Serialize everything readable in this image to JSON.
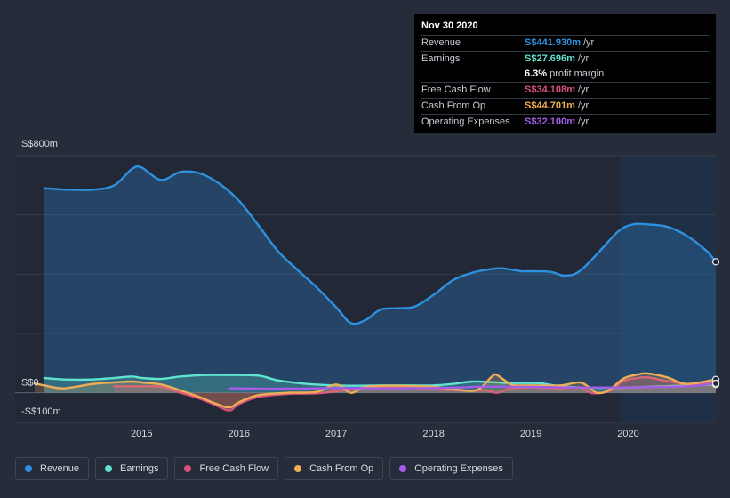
{
  "tooltip": {
    "date": "Nov 30 2020",
    "rows": [
      {
        "label": "Revenue",
        "value": "S$441.930m",
        "unit": "/yr",
        "color": "#2d91e0"
      },
      {
        "label": "Earnings",
        "value": "S$27.696m",
        "unit": "/yr",
        "color": "#5ee3cf"
      },
      {
        "label": "",
        "value": "6.3%",
        "unit": "profit margin",
        "color": "#ffffff"
      },
      {
        "label": "Free Cash Flow",
        "value": "S$34.108m",
        "unit": "/yr",
        "color": "#d9527e"
      },
      {
        "label": "Cash From Op",
        "value": "S$44.701m",
        "unit": "/yr",
        "color": "#efae55"
      },
      {
        "label": "Operating Expenses",
        "value": "S$32.100m",
        "unit": "/yr",
        "color": "#a45de8"
      }
    ]
  },
  "legend": [
    {
      "label": "Revenue",
      "color": "#2d91e0"
    },
    {
      "label": "Earnings",
      "color": "#5ee3cf"
    },
    {
      "label": "Free Cash Flow",
      "color": "#d9527e"
    },
    {
      "label": "Cash From Op",
      "color": "#efae55"
    },
    {
      "label": "Operating Expenses",
      "color": "#a45de8"
    }
  ],
  "chart_data": {
    "type": "area",
    "ylim": [
      -100,
      800
    ],
    "y_tick_labels": [
      {
        "value": 800,
        "label": "S$800m"
      },
      {
        "value": 0,
        "label": "S$0"
      },
      {
        "value": -100,
        "label": "-S$100m"
      }
    ],
    "x_ticks": [
      {
        "value": 2015,
        "label": "2015"
      },
      {
        "value": 2016,
        "label": "2016"
      },
      {
        "value": 2017,
        "label": "2017"
      },
      {
        "value": 2018,
        "label": "2018"
      },
      {
        "value": 2019,
        "label": "2019"
      },
      {
        "value": 2020,
        "label": "2020"
      }
    ],
    "xlim": [
      2013.7,
      2020.9
    ],
    "highlight_from": 2019.92,
    "series": [
      {
        "name": "Revenue",
        "color": "#2d91e0",
        "fill": true,
        "x": [
          2014.0,
          2014.25,
          2014.5,
          2014.72,
          2014.9,
          2015.0,
          2015.2,
          2015.4,
          2015.6,
          2015.8,
          2016.0,
          2016.2,
          2016.4,
          2016.6,
          2016.8,
          2017.0,
          2017.15,
          2017.3,
          2017.45,
          2017.6,
          2017.8,
          2018.0,
          2018.2,
          2018.4,
          2018.55,
          2018.7,
          2018.9,
          2019.0,
          2019.2,
          2019.35,
          2019.5,
          2019.7,
          2019.9,
          2020.05,
          2020.2,
          2020.4,
          2020.6,
          2020.8,
          2020.9
        ],
        "values": [
          690,
          685,
          685,
          700,
          755,
          760,
          718,
          745,
          740,
          705,
          648,
          565,
          478,
          415,
          355,
          288,
          235,
          245,
          280,
          285,
          290,
          330,
          380,
          405,
          415,
          420,
          410,
          410,
          408,
          395,
          410,
          475,
          545,
          568,
          568,
          560,
          530,
          480,
          442
        ]
      },
      {
        "name": "Earnings",
        "color": "#5ee3cf",
        "fill": true,
        "x": [
          2014.0,
          2014.2,
          2014.5,
          2014.72,
          2014.9,
          2015.0,
          2015.2,
          2015.4,
          2015.65,
          2015.9,
          2016.2,
          2016.4,
          2016.7,
          2017.0,
          2017.2,
          2017.5,
          2017.8,
          2018.0,
          2018.2,
          2018.4,
          2018.6,
          2018.8,
          2019.0,
          2019.1,
          2019.2,
          2019.3,
          2019.5,
          2019.7,
          2019.9,
          2020.2,
          2020.5,
          2020.9
        ],
        "values": [
          50,
          45,
          45,
          50,
          55,
          50,
          47,
          55,
          60,
          60,
          58,
          42,
          30,
          25,
          24,
          25,
          25,
          25,
          30,
          38,
          36,
          33,
          33,
          32,
          27,
          22,
          18,
          17,
          17,
          20,
          24,
          28
        ]
      },
      {
        "name": "Free Cash Flow",
        "color": "#d9527e",
        "fill": true,
        "x": [
          2014.72,
          2014.9,
          2015.0,
          2015.2,
          2015.4,
          2015.6,
          2015.75,
          2015.9,
          2016.0,
          2016.2,
          2016.5,
          2016.8,
          2017.0,
          2017.15,
          2017.3,
          2017.6,
          2018.0,
          2018.3,
          2018.55,
          2018.65,
          2018.8,
          2019.0,
          2019.3,
          2019.5,
          2019.6,
          2019.65,
          2019.8,
          2019.95,
          2020.1,
          2020.2,
          2020.4,
          2020.6,
          2020.9
        ],
        "values": [
          22,
          22,
          22,
          20,
          0,
          -20,
          -40,
          -60,
          -38,
          -14,
          -4,
          -2,
          5,
          10,
          15,
          18,
          12,
          8,
          8,
          0,
          15,
          18,
          15,
          18,
          2,
          -2,
          5,
          40,
          50,
          52,
          40,
          30,
          34
        ]
      },
      {
        "name": "Cash From Op",
        "color": "#efae55",
        "fill": true,
        "x": [
          2013.9,
          2014.0,
          2014.2,
          2014.5,
          2014.72,
          2014.9,
          2015.0,
          2015.2,
          2015.4,
          2015.6,
          2015.75,
          2015.9,
          2016.0,
          2016.2,
          2016.5,
          2016.8,
          2017.0,
          2017.15,
          2017.3,
          2017.6,
          2018.0,
          2018.25,
          2018.45,
          2018.6,
          2018.65,
          2018.8,
          2018.92,
          2019.0,
          2019.3,
          2019.5,
          2019.6,
          2019.68,
          2019.8,
          2019.95,
          2020.1,
          2020.2,
          2020.4,
          2020.6,
          2020.9
        ],
        "values": [
          32,
          25,
          15,
          30,
          35,
          38,
          35,
          28,
          8,
          -15,
          -35,
          -50,
          -32,
          -8,
          0,
          3,
          28,
          0,
          20,
          24,
          20,
          10,
          10,
          55,
          60,
          28,
          25,
          25,
          25,
          35,
          18,
          0,
          8,
          48,
          62,
          65,
          52,
          30,
          45
        ]
      },
      {
        "name": "Operating Expenses",
        "color": "#a45de8",
        "fill": false,
        "x": [
          2015.9,
          2016.5,
          2017.0,
          2017.5,
          2018.0,
          2018.3,
          2018.5,
          2019.0,
          2019.4,
          2019.8,
          2020.2,
          2020.6,
          2020.9
        ],
        "values": [
          15,
          14,
          16,
          15,
          16,
          18,
          21,
          20,
          18,
          18,
          19,
          22,
          32
        ]
      }
    ]
  }
}
